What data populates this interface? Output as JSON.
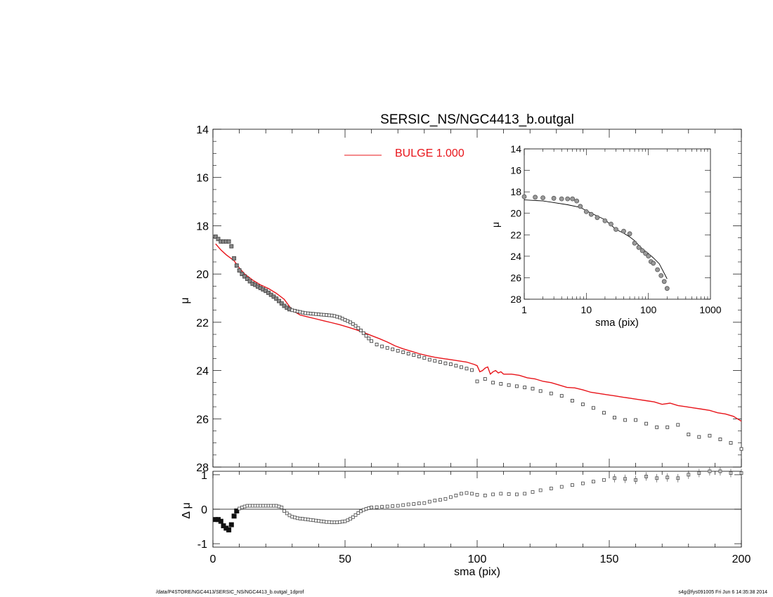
{
  "footer": {
    "left": "/data/P4STORE/NGC4413/SERSIC_NS/NGC4413_b.outgal_1dprof",
    "right": "s4g@fys091005  Fri Jun  6 14:35:38 2014"
  },
  "chart_data": [
    {
      "type": "scatter",
      "panel": "main",
      "title": "SERSIC_NS/NGC4413_b.outgal",
      "xlabel": "",
      "ylabel": "μ",
      "xlim": [
        0,
        200
      ],
      "ylim": [
        28,
        14
      ],
      "y_inverted": true,
      "yticks": [
        14,
        16,
        18,
        20,
        22,
        24,
        26,
        28
      ],
      "legend": {
        "placement": "top-center",
        "entries": [
          "BULGE  1.000"
        ]
      },
      "colors": {
        "data": "#555555",
        "model": "#e8141a"
      },
      "series": [
        {
          "role": "data",
          "marker": "open-square",
          "x": [
            1,
            2,
            3,
            4,
            5,
            6,
            7,
            8,
            9,
            10,
            11,
            12,
            13,
            14,
            15,
            16,
            17,
            18,
            19,
            20,
            21,
            22,
            23,
            24,
            25,
            26,
            27,
            28,
            29,
            30,
            31,
            32,
            33,
            34,
            35,
            36,
            37,
            38,
            39,
            40,
            41,
            42,
            43,
            44,
            45,
            46,
            47,
            48,
            49,
            50,
            51,
            52,
            53,
            54,
            55,
            56,
            57,
            58,
            59,
            60,
            62,
            64,
            66,
            68,
            70,
            72,
            74,
            76,
            78,
            80,
            82,
            84,
            86,
            88,
            90,
            92,
            94,
            96,
            98,
            100,
            103,
            106,
            109,
            112,
            115,
            118,
            121,
            124,
            128,
            132,
            136,
            140,
            144,
            148,
            152,
            156,
            160,
            164,
            168,
            172,
            176,
            180,
            184,
            188,
            192,
            196,
            200
          ],
          "y": [
            18.45,
            18.55,
            18.65,
            18.65,
            18.65,
            18.65,
            18.85,
            19.35,
            19.65,
            19.85,
            20.0,
            20.1,
            20.2,
            20.3,
            20.4,
            20.45,
            20.52,
            20.58,
            20.64,
            20.7,
            20.78,
            20.86,
            20.94,
            21.02,
            21.12,
            21.22,
            21.32,
            21.4,
            21.46,
            21.5,
            21.52,
            21.55,
            21.57,
            21.6,
            21.62,
            21.63,
            21.64,
            21.65,
            21.66,
            21.67,
            21.68,
            21.69,
            21.7,
            21.71,
            21.72,
            21.74,
            21.77,
            21.8,
            21.85,
            21.9,
            21.95,
            22.0,
            22.07,
            22.15,
            22.24,
            22.34,
            22.45,
            22.56,
            22.67,
            22.78,
            22.92,
            23.0,
            23.06,
            23.12,
            23.18,
            23.24,
            23.3,
            23.36,
            23.42,
            23.48,
            23.55,
            23.6,
            23.65,
            23.7,
            23.74,
            23.8,
            23.86,
            23.92,
            23.98,
            24.45,
            24.35,
            24.5,
            24.55,
            24.6,
            24.65,
            24.7,
            24.75,
            24.85,
            24.95,
            25.05,
            25.25,
            25.4,
            25.55,
            25.75,
            25.95,
            26.05,
            26.05,
            26.2,
            26.35,
            26.35,
            26.25,
            26.65,
            26.75,
            26.7,
            26.85,
            27.0,
            27.25
          ]
        },
        {
          "role": "model",
          "name": "BULGE  1.000",
          "x": [
            1,
            3,
            5,
            8,
            10,
            12,
            15,
            18,
            21,
            24,
            27,
            30,
            33,
            36,
            39,
            42,
            45,
            48,
            51,
            54,
            57,
            60,
            63,
            66,
            69,
            72,
            75,
            78,
            81,
            84,
            87,
            90,
            93,
            96,
            99,
            100,
            101,
            102,
            103,
            104,
            105,
            106,
            107,
            108,
            109,
            110,
            113,
            116,
            119,
            122,
            125,
            128,
            131,
            134,
            137,
            140,
            143,
            146,
            149,
            152,
            155,
            158,
            161,
            164,
            167,
            170,
            173,
            176,
            179,
            182,
            185,
            188,
            191,
            194,
            197,
            200
          ],
          "y": [
            18.75,
            19.0,
            19.2,
            19.45,
            19.75,
            20.0,
            20.25,
            20.45,
            20.6,
            20.8,
            21.05,
            21.5,
            21.7,
            21.78,
            21.86,
            21.94,
            22.02,
            22.1,
            22.2,
            22.3,
            22.42,
            22.55,
            22.68,
            22.82,
            22.98,
            23.1,
            23.2,
            23.3,
            23.38,
            23.45,
            23.5,
            23.55,
            23.6,
            23.65,
            23.75,
            23.8,
            24.05,
            24.0,
            23.9,
            23.85,
            24.15,
            24.05,
            24.0,
            24.1,
            24.05,
            24.15,
            24.15,
            24.2,
            24.3,
            24.35,
            24.45,
            24.5,
            24.6,
            24.7,
            24.72,
            24.8,
            24.9,
            24.95,
            25.0,
            25.05,
            25.1,
            25.15,
            25.2,
            25.25,
            25.3,
            25.4,
            25.35,
            25.45,
            25.5,
            25.55,
            25.6,
            25.65,
            25.75,
            25.8,
            25.9,
            26.1
          ]
        }
      ]
    },
    {
      "type": "scatter",
      "panel": "inset",
      "xlabel": "sma (pix)",
      "ylabel": "μ",
      "xscale": "log",
      "xlim": [
        1,
        1000
      ],
      "ylim": [
        28,
        14
      ],
      "y_inverted": true,
      "xticks": [
        "1",
        "10",
        "100",
        "1000"
      ],
      "yticks": [
        14,
        16,
        18,
        20,
        22,
        24,
        26,
        28
      ],
      "series": [
        {
          "role": "data",
          "marker": "open-circle",
          "x": [
            1,
            1.5,
            2,
            3,
            4,
            5,
            6,
            7,
            8,
            10,
            12,
            15,
            20,
            25,
            30,
            40,
            50,
            60,
            70,
            80,
            90,
            100,
            110,
            120,
            140,
            160,
            180,
            200
          ],
          "y": [
            18.45,
            18.5,
            18.55,
            18.6,
            18.65,
            18.65,
            18.65,
            18.85,
            19.35,
            19.85,
            20.1,
            20.4,
            20.7,
            21.0,
            21.5,
            21.66,
            21.9,
            22.78,
            23.18,
            23.48,
            23.74,
            23.98,
            24.5,
            24.65,
            25.25,
            25.8,
            26.35,
            27.0
          ]
        },
        {
          "role": "model",
          "x": [
            1,
            2,
            3,
            5,
            8,
            10,
            12,
            15,
            20,
            30,
            40,
            50,
            60,
            70,
            80,
            100,
            120,
            150,
            200
          ],
          "y": [
            18.75,
            18.85,
            19.0,
            19.2,
            19.45,
            19.75,
            20.0,
            20.25,
            20.6,
            21.5,
            21.85,
            22.2,
            22.55,
            22.98,
            23.3,
            23.75,
            24.15,
            24.7,
            26.1
          ]
        }
      ]
    },
    {
      "type": "scatter",
      "panel": "residual",
      "xlabel": "sma (pix)",
      "ylabel": "Δ μ",
      "xlim": [
        0,
        200
      ],
      "ylim": [
        -1.1,
        1.1
      ],
      "xticks": [
        0,
        50,
        100,
        150,
        200
      ],
      "yticks": [
        -1,
        0,
        1
      ],
      "series": [
        {
          "role": "residual",
          "marker": "open-square",
          "x": [
            1,
            2,
            3,
            4,
            5,
            6,
            7,
            8,
            9,
            10,
            11,
            12,
            13,
            14,
            15,
            16,
            17,
            18,
            19,
            20,
            21,
            22,
            23,
            24,
            25,
            26,
            27,
            28,
            29,
            30,
            31,
            32,
            33,
            34,
            35,
            36,
            37,
            38,
            39,
            40,
            41,
            42,
            43,
            44,
            45,
            46,
            47,
            48,
            49,
            50,
            51,
            52,
            53,
            54,
            55,
            56,
            57,
            58,
            59,
            60,
            62,
            64,
            66,
            68,
            70,
            72,
            74,
            76,
            78,
            80,
            82,
            84,
            86,
            88,
            90,
            92,
            94,
            96,
            98,
            100,
            103,
            106,
            109,
            112,
            115,
            118,
            121,
            124,
            128,
            132,
            136,
            140,
            144,
            148,
            152,
            156,
            160,
            164,
            168,
            172,
            176,
            180,
            184,
            188,
            192,
            196,
            200
          ],
          "y": [
            -0.3,
            -0.3,
            -0.35,
            -0.48,
            -0.55,
            -0.6,
            -0.45,
            -0.2,
            -0.05,
            0.02,
            0.05,
            0.08,
            0.1,
            0.1,
            0.1,
            0.1,
            0.1,
            0.1,
            0.1,
            0.1,
            0.1,
            0.1,
            0.1,
            0.1,
            0.08,
            0.05,
            -0.05,
            -0.12,
            -0.18,
            -0.22,
            -0.24,
            -0.26,
            -0.27,
            -0.28,
            -0.29,
            -0.3,
            -0.31,
            -0.32,
            -0.33,
            -0.34,
            -0.35,
            -0.36,
            -0.37,
            -0.37,
            -0.38,
            -0.38,
            -0.38,
            -0.37,
            -0.36,
            -0.35,
            -0.32,
            -0.28,
            -0.23,
            -0.17,
            -0.11,
            -0.06,
            -0.02,
            0.01,
            0.03,
            0.05,
            0.06,
            0.07,
            0.08,
            0.09,
            0.1,
            0.12,
            0.14,
            0.15,
            0.17,
            0.18,
            0.22,
            0.25,
            0.27,
            0.3,
            0.35,
            0.4,
            0.45,
            0.47,
            0.45,
            0.42,
            0.4,
            0.43,
            0.45,
            0.44,
            0.43,
            0.45,
            0.5,
            0.55,
            0.6,
            0.65,
            0.7,
            0.75,
            0.8,
            0.85,
            0.9,
            0.88,
            0.85,
            0.95,
            0.9,
            0.92,
            0.9,
            1.0,
            1.05,
            1.1,
            1.1,
            1.05,
            1.05
          ]
        }
      ]
    }
  ]
}
